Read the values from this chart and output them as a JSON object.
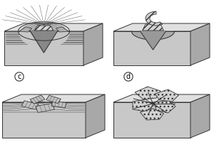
{
  "background_color": "#ffffff",
  "box_front_color": "#c8c8c8",
  "box_top_color": "#e0e0e0",
  "box_side_color": "#a8a8a8",
  "box_edge_color": "#333333",
  "line_color": "#444444",
  "hatch_color": "#555555",
  "particle_face": "#d8d8d8",
  "groove_color": "#888888",
  "fig_width": 3.0,
  "fig_height": 2.0,
  "dpi": 100
}
